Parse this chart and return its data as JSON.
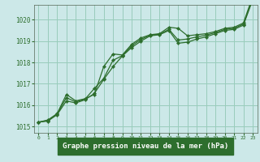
{
  "title": "Graphe pression niveau de la mer (hPa)",
  "background_color": "#cce8e8",
  "plot_bg_color": "#cce8e8",
  "grid_color": "#99ccbb",
  "line_color": "#2d6e2d",
  "label_bg_color": "#2d6e2d",
  "label_text_color": "#ffffff",
  "xlim": [
    -0.5,
    23.5
  ],
  "ylim": [
    1014.7,
    1020.7
  ],
  "yticks": [
    1015,
    1016,
    1017,
    1018,
    1019,
    1020
  ],
  "xticks": [
    0,
    1,
    2,
    3,
    4,
    5,
    6,
    7,
    8,
    9,
    10,
    11,
    12,
    13,
    14,
    15,
    16,
    17,
    18,
    19,
    20,
    21,
    22,
    23
  ],
  "series1": {
    "x": [
      0,
      1,
      2,
      3,
      4,
      5,
      6,
      7,
      8,
      9,
      10,
      11,
      12,
      13,
      14,
      15,
      16,
      17,
      18,
      19,
      20,
      21,
      22,
      23
    ],
    "y": [
      1015.2,
      1015.3,
      1015.6,
      1016.5,
      1016.2,
      1016.3,
      1016.5,
      1017.8,
      1018.4,
      1018.35,
      1018.85,
      1019.15,
      1019.3,
      1019.35,
      1019.65,
      1019.6,
      1019.25,
      1019.3,
      1019.35,
      1019.45,
      1019.6,
      1019.65,
      1019.85,
      1021.1
    ]
  },
  "series2": {
    "x": [
      0,
      1,
      2,
      3,
      4,
      5,
      6,
      7,
      8,
      9,
      10,
      11,
      12,
      13,
      14,
      15,
      16,
      17,
      18,
      19,
      20,
      21,
      22,
      23
    ],
    "y": [
      1015.2,
      1015.25,
      1015.55,
      1016.2,
      1016.1,
      1016.25,
      1016.55,
      1017.2,
      1017.8,
      1018.3,
      1018.7,
      1019.0,
      1019.25,
      1019.3,
      1019.5,
      1018.9,
      1018.95,
      1019.1,
      1019.2,
      1019.35,
      1019.5,
      1019.55,
      1019.75,
      1020.95
    ]
  },
  "series3": {
    "x": [
      0,
      1,
      2,
      3,
      4,
      5,
      6,
      7,
      8,
      9,
      10,
      11,
      12,
      13,
      14,
      15,
      16,
      17,
      18,
      19,
      20,
      21,
      22,
      23
    ],
    "y": [
      1015.2,
      1015.28,
      1015.58,
      1016.35,
      1016.15,
      1016.28,
      1016.78,
      1017.25,
      1018.1,
      1018.32,
      1018.78,
      1019.08,
      1019.28,
      1019.32,
      1019.55,
      1019.05,
      1019.1,
      1019.2,
      1019.28,
      1019.4,
      1019.55,
      1019.6,
      1019.8,
      1021.0
    ]
  }
}
